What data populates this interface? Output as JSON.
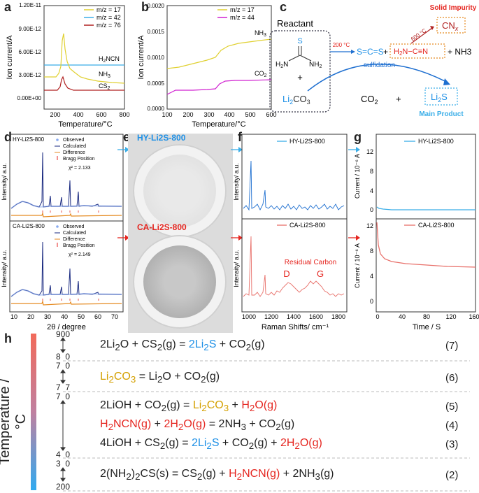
{
  "panels": {
    "a": "a",
    "b": "b",
    "c": "c",
    "d": "d",
    "e": "e",
    "f": "f",
    "g": "g",
    "h": "h"
  },
  "panel_a": {
    "ylabel": "Ion current/A",
    "xlabel": "Temperature/°C",
    "yticks": [
      "0.00E+00",
      "3.00E-12",
      "6.00E-12",
      "9.00E-12",
      "1.20E-11"
    ],
    "xticks": [
      "200",
      "400",
      "600",
      "800"
    ],
    "legend": [
      "m/z = 17",
      "m/z = 42",
      "m/z = 76"
    ],
    "labels": {
      "h2ncn": "H2NCN",
      "nh3": "NH3",
      "cs2": "CS2"
    },
    "colors": {
      "m17": "#e0d030",
      "m42": "#3aaee8",
      "m76": "#b02020"
    }
  },
  "panel_b": {
    "ylabel": "Ion current/A",
    "xlabel": "Temperature/°C",
    "yticks": [
      "0.0000",
      "0.0005",
      "0.0010",
      "0.0015",
      "0.0020"
    ],
    "xticks": [
      "100",
      "200",
      "300",
      "400",
      "500",
      "600"
    ],
    "legend": [
      "m/z = 17",
      "m/z = 44"
    ],
    "labels": {
      "nh3": "NH3",
      "co2": "CO2"
    },
    "colors": {
      "m17": "#e0d030",
      "m44": "#d020d0"
    }
  },
  "panel_c": {
    "reactant": "Reactant",
    "plus": "+",
    "li2co3": "Li2CO3",
    "temp200": "200 °C",
    "scs": "S=C=S",
    "h2ncn": "H2N−C≡N",
    "nh3": "+ NH3",
    "temp600": "600 °C",
    "cnx": "CNx",
    "solid_impurity": "Solid Impurity",
    "sulfidation": "sulfidation",
    "co2": "CO2",
    "li2s": "Li2S",
    "main_product": "Main Product",
    "thiourea": {
      "s": "S",
      "n1": "H2N",
      "n2": "NH2"
    }
  },
  "panel_d": {
    "samples": [
      "HY-Li2S-800",
      "CA-Li2S-800"
    ],
    "legend": [
      "Observed",
      "Calculated",
      "Difference",
      "Bragg Position"
    ],
    "chi": [
      "χ² = 2.133",
      "χ² = 2.149"
    ],
    "ylabel": "Intensity/ a.u.",
    "xlabel": "2θ / degree",
    "xticks": [
      "10",
      "20",
      "30",
      "40",
      "50",
      "60",
      "70"
    ]
  },
  "panel_e": {
    "labels": [
      "HY-Li2S-800",
      "CA-Li2S-800"
    ]
  },
  "panel_f": {
    "legend": [
      "HY-Li2S-800",
      "CA-Li2S-800"
    ],
    "ylabel": "Intensity/ a.u.",
    "xlabel": "Raman Shifts/ cm⁻¹",
    "xticks": [
      "1000",
      "1200",
      "1400",
      "1600",
      "1800"
    ],
    "residual": "Residual Carbon",
    "d": "D",
    "g": "G"
  },
  "panel_g": {
    "legend": [
      "HY-Li2S-800",
      "CA-Li2S-800"
    ],
    "ylabel": "Current / 10⁻⁶ A",
    "xlabel": "Time / S",
    "yticks_top": [
      "0",
      "4",
      "8",
      "12"
    ],
    "yticks_bottom": [
      "0",
      "4",
      "8",
      "12"
    ],
    "xticks": [
      "0",
      "40",
      "80",
      "120",
      "160"
    ]
  },
  "panel_h": {
    "axis_label": "Temperature / °C",
    "temps": {
      "t900": "900",
      "t8": "8",
      "t0a": "0",
      "t7a": "7",
      "t0b": "0",
      "t7b": "7",
      "t7c": "7",
      "t7d": "7",
      "t0c": "0",
      "t4": "4",
      "t0d": "0",
      "t3": "3",
      "t0e": "0",
      "t200": "200"
    },
    "equations": [
      {
        "num": "(7)"
      },
      {
        "num": "(6)"
      },
      {
        "num": "(5)"
      },
      {
        "num": "(4)"
      },
      {
        "num": "(3)"
      },
      {
        "num": "(2)"
      }
    ]
  }
}
